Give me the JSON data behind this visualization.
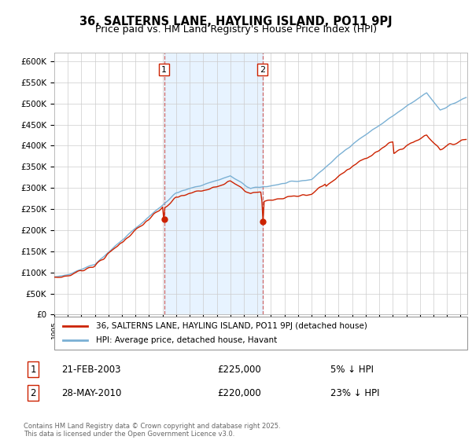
{
  "title": "36, SALTERNS LANE, HAYLING ISLAND, PO11 9PJ",
  "subtitle": "Price paid vs. HM Land Registry's House Price Index (HPI)",
  "ylim": [
    0,
    620000
  ],
  "yticks": [
    0,
    50000,
    100000,
    150000,
    200000,
    250000,
    300000,
    350000,
    400000,
    450000,
    500000,
    550000,
    600000
  ],
  "ytick_labels": [
    "£0",
    "£50K",
    "£100K",
    "£150K",
    "£200K",
    "£250K",
    "£300K",
    "£350K",
    "£400K",
    "£450K",
    "£500K",
    "£550K",
    "£600K"
  ],
  "hpi_color": "#7ab0d4",
  "price_color": "#cc2200",
  "dashed_color": "#cc6666",
  "sale1_date": 2003.12,
  "sale1_price": 225000,
  "sale2_date": 2010.38,
  "sale2_price": 220000,
  "legend_label_price": "36, SALTERNS LANE, HAYLING ISLAND, PO11 9PJ (detached house)",
  "legend_label_hpi": "HPI: Average price, detached house, Havant",
  "annotation1_date": "21-FEB-2003",
  "annotation1_price": "£225,000",
  "annotation1_info": "5% ↓ HPI",
  "annotation2_date": "28-MAY-2010",
  "annotation2_price": "£220,000",
  "annotation2_info": "23% ↓ HPI",
  "footer": "Contains HM Land Registry data © Crown copyright and database right 2025.\nThis data is licensed under the Open Government Licence v3.0.",
  "bg_color": "#ffffff",
  "grid_color": "#cccccc",
  "shade_color": "#ddeeff"
}
